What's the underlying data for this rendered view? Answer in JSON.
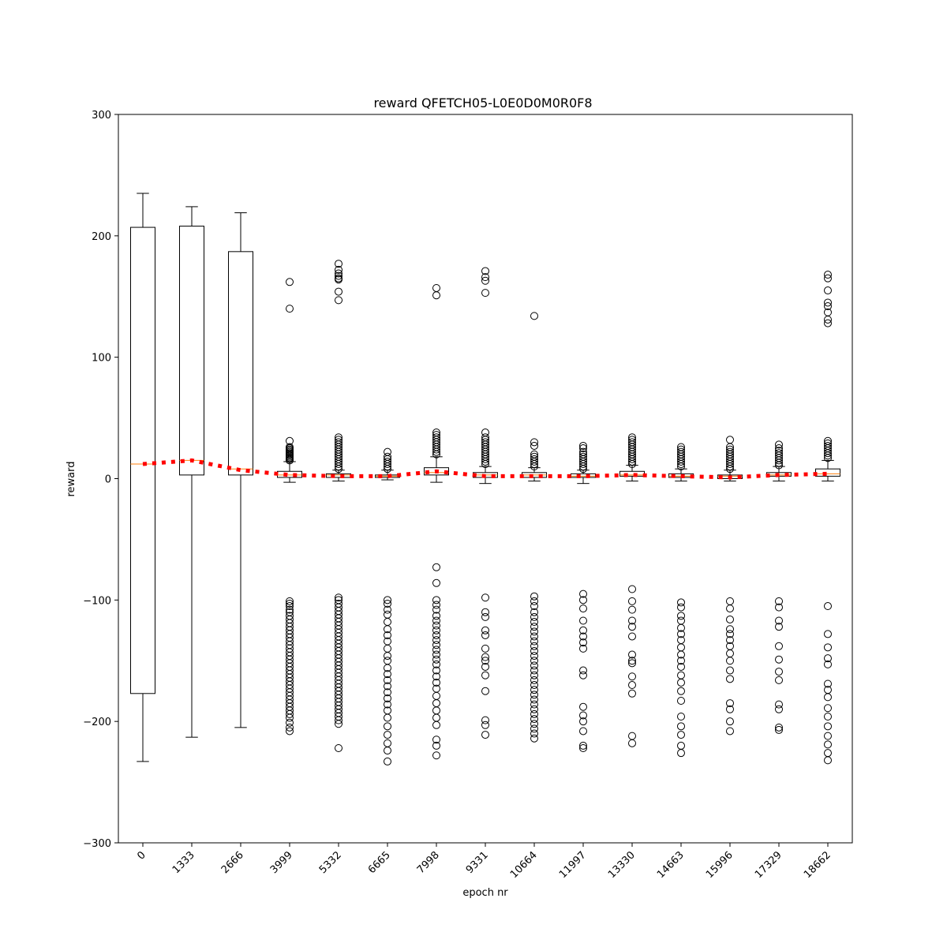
{
  "chart_data": {
    "type": "box",
    "title": "reward QFETCH05-L0E0D0M0R0F8",
    "xlabel": "epoch nr",
    "ylabel": "reward",
    "ylim": [
      -300,
      300
    ],
    "yticks": [
      300,
      200,
      100,
      0,
      -100,
      -200,
      -300
    ],
    "yticks_labels": [
      "300",
      "200",
      "100",
      "0",
      "−100",
      "−200",
      "−300"
    ],
    "categories": [
      "0",
      "1333",
      "2666",
      "3999",
      "5332",
      "6665",
      "7998",
      "9331",
      "10664",
      "11997",
      "13330",
      "14663",
      "15996",
      "17329",
      "18662"
    ],
    "mean_line": {
      "color": "#ff0000",
      "style": "dotted"
    },
    "colors": {
      "box": "#000000",
      "median": "#ff7f0e",
      "mean": "#ff0000"
    },
    "boxes": [
      {
        "category": "0",
        "whislo": -233,
        "q1": -177,
        "med": 12,
        "q3": 207,
        "whishi": 235,
        "mean": 12,
        "fliers": []
      },
      {
        "category": "1333",
        "whislo": -213,
        "q1": 3,
        "med": 15,
        "q3": 208,
        "whishi": 224,
        "mean": 15,
        "fliers": []
      },
      {
        "category": "2666",
        "whislo": -205,
        "q1": 3,
        "med": 8,
        "q3": 187,
        "whishi": 219,
        "mean": 7,
        "fliers": []
      },
      {
        "category": "3999",
        "whislo": -3,
        "q1": 1,
        "med": 3,
        "q3": 6,
        "whishi": 14,
        "mean": 3,
        "fliers": [
          162,
          140,
          31,
          26,
          25,
          24,
          23,
          22,
          21,
          20,
          19,
          18,
          17,
          16,
          15,
          -101,
          -103,
          -105,
          -108,
          -110,
          -113,
          -116,
          -119,
          -122,
          -125,
          -128,
          -131,
          -134,
          -137,
          -140,
          -143,
          -146,
          -149,
          -152,
          -155,
          -158,
          -161,
          -164,
          -167,
          -170,
          -173,
          -176,
          -179,
          -182,
          -185,
          -188,
          -191,
          -194,
          -197,
          -201,
          -205,
          -208
        ]
      },
      {
        "category": "5332",
        "whislo": -2,
        "q1": 1,
        "med": 3,
        "q3": 4,
        "whishi": 7,
        "mean": 2,
        "fliers": [
          177,
          172,
          169,
          167,
          165,
          164,
          154,
          147,
          34,
          32,
          30,
          28,
          26,
          24,
          22,
          20,
          18,
          16,
          14,
          12,
          10,
          8,
          -98,
          -100,
          -103,
          -106,
          -109,
          -112,
          -115,
          -118,
          -121,
          -124,
          -127,
          -130,
          -133,
          -136,
          -139,
          -142,
          -145,
          -148,
          -151,
          -154,
          -157,
          -160,
          -163,
          -166,
          -169,
          -172,
          -175,
          -178,
          -181,
          -184,
          -187,
          -190,
          -193,
          -196,
          -199,
          -202,
          -222
        ]
      },
      {
        "category": "6665",
        "whislo": -1,
        "q1": 1,
        "med": 2,
        "q3": 3,
        "whishi": 7,
        "mean": 2,
        "fliers": [
          22,
          18,
          16,
          14,
          12,
          10,
          8,
          -100,
          -103,
          -108,
          -112,
          -118,
          -124,
          -129,
          -134,
          -140,
          -146,
          -150,
          -156,
          -161,
          -166,
          -171,
          -176,
          -181,
          -186,
          -191,
          -197,
          -204,
          -211,
          -218,
          -224,
          -233
        ]
      },
      {
        "category": "7998",
        "whislo": -3,
        "q1": 3,
        "med": 5,
        "q3": 9,
        "whishi": 18,
        "mean": 6,
        "fliers": [
          157,
          151,
          38,
          36,
          34,
          32,
          30,
          28,
          26,
          24,
          22,
          20,
          -73,
          -86,
          -100,
          -104,
          -108,
          -113,
          -117,
          -121,
          -125,
          -129,
          -133,
          -137,
          -141,
          -145,
          -149,
          -153,
          -158,
          -163,
          -168,
          -173,
          -179,
          -185,
          -191,
          -197,
          -203,
          -215,
          -220,
          -228
        ]
      },
      {
        "category": "9331",
        "whislo": -4,
        "q1": 1,
        "med": 3,
        "q3": 5,
        "whishi": 10,
        "mean": 2,
        "fliers": [
          171,
          166,
          163,
          153,
          38,
          34,
          32,
          30,
          28,
          26,
          24,
          22,
          20,
          18,
          16,
          14,
          12,
          -98,
          -110,
          -114,
          -125,
          -129,
          -140,
          -147,
          -150,
          -155,
          -162,
          -175,
          -199,
          -203,
          -211
        ]
      },
      {
        "category": "10664",
        "whislo": -2,
        "q1": 1,
        "med": 3,
        "q3": 5,
        "whishi": 9,
        "mean": 2,
        "fliers": [
          134,
          30,
          27,
          20,
          18,
          16,
          14,
          12,
          10,
          -97,
          -101,
          -105,
          -110,
          -114,
          -118,
          -122,
          -126,
          -130,
          -134,
          -138,
          -142,
          -146,
          -150,
          -154,
          -158,
          -162,
          -166,
          -170,
          -174,
          -178,
          -182,
          -186,
          -190,
          -194,
          -198,
          -202,
          -206,
          -210,
          -214
        ]
      },
      {
        "category": "11997",
        "whislo": -4,
        "q1": 1,
        "med": 2,
        "q3": 4,
        "whishi": 7,
        "mean": 2,
        "fliers": [
          27,
          25,
          22,
          20,
          18,
          16,
          14,
          12,
          10,
          8,
          -95,
          -100,
          -107,
          -117,
          -125,
          -130,
          -135,
          -140,
          -158,
          -162,
          -188,
          -195,
          -200,
          -208,
          -220,
          -222
        ]
      },
      {
        "category": "13330",
        "whislo": -2,
        "q1": 2,
        "med": 3,
        "q3": 6,
        "whishi": 11,
        "mean": 3,
        "fliers": [
          34,
          32,
          30,
          28,
          26,
          24,
          22,
          20,
          18,
          16,
          14,
          12,
          -91,
          -101,
          -108,
          -117,
          -122,
          -130,
          -145,
          -150,
          -152,
          -163,
          -170,
          -177,
          -212,
          -218
        ]
      },
      {
        "category": "14663",
        "whislo": -2,
        "q1": 1,
        "med": 2,
        "q3": 4,
        "whishi": 8,
        "mean": 2,
        "fliers": [
          26,
          24,
          22,
          20,
          18,
          16,
          14,
          12,
          10,
          -102,
          -106,
          -113,
          -117,
          -123,
          -128,
          -133,
          -139,
          -145,
          -150,
          -155,
          -162,
          -168,
          -175,
          -183,
          -196,
          -204,
          -211,
          -220,
          -226
        ]
      },
      {
        "category": "15996",
        "whislo": -2,
        "q1": 0,
        "med": 2,
        "q3": 3,
        "whishi": 7,
        "mean": 1,
        "fliers": [
          32,
          26,
          24,
          22,
          20,
          18,
          16,
          14,
          12,
          10,
          8,
          -101,
          -107,
          -116,
          -124,
          -128,
          -133,
          -138,
          -144,
          -150,
          -158,
          -165,
          -185,
          -190,
          -200,
          -208
        ]
      },
      {
        "category": "17329",
        "whislo": -2,
        "q1": 2,
        "med": 3,
        "q3": 5,
        "whishi": 10,
        "mean": 3,
        "fliers": [
          28,
          25,
          23,
          21,
          19,
          17,
          15,
          13,
          11,
          -101,
          -106,
          -117,
          -122,
          -138,
          -149,
          -159,
          -166,
          -186,
          -190,
          -205,
          -207
        ]
      },
      {
        "category": "18662",
        "whislo": -2,
        "q1": 2,
        "med": 4,
        "q3": 8,
        "whishi": 15,
        "mean": 4,
        "fliers": [
          168,
          165,
          155,
          145,
          142,
          137,
          131,
          128,
          31,
          29,
          27,
          25,
          23,
          21,
          19,
          17,
          -105,
          -128,
          -139,
          -148,
          -153,
          -169,
          -174,
          -180,
          -189,
          -196,
          -204,
          -212,
          -219,
          -226,
          -232
        ]
      }
    ]
  }
}
